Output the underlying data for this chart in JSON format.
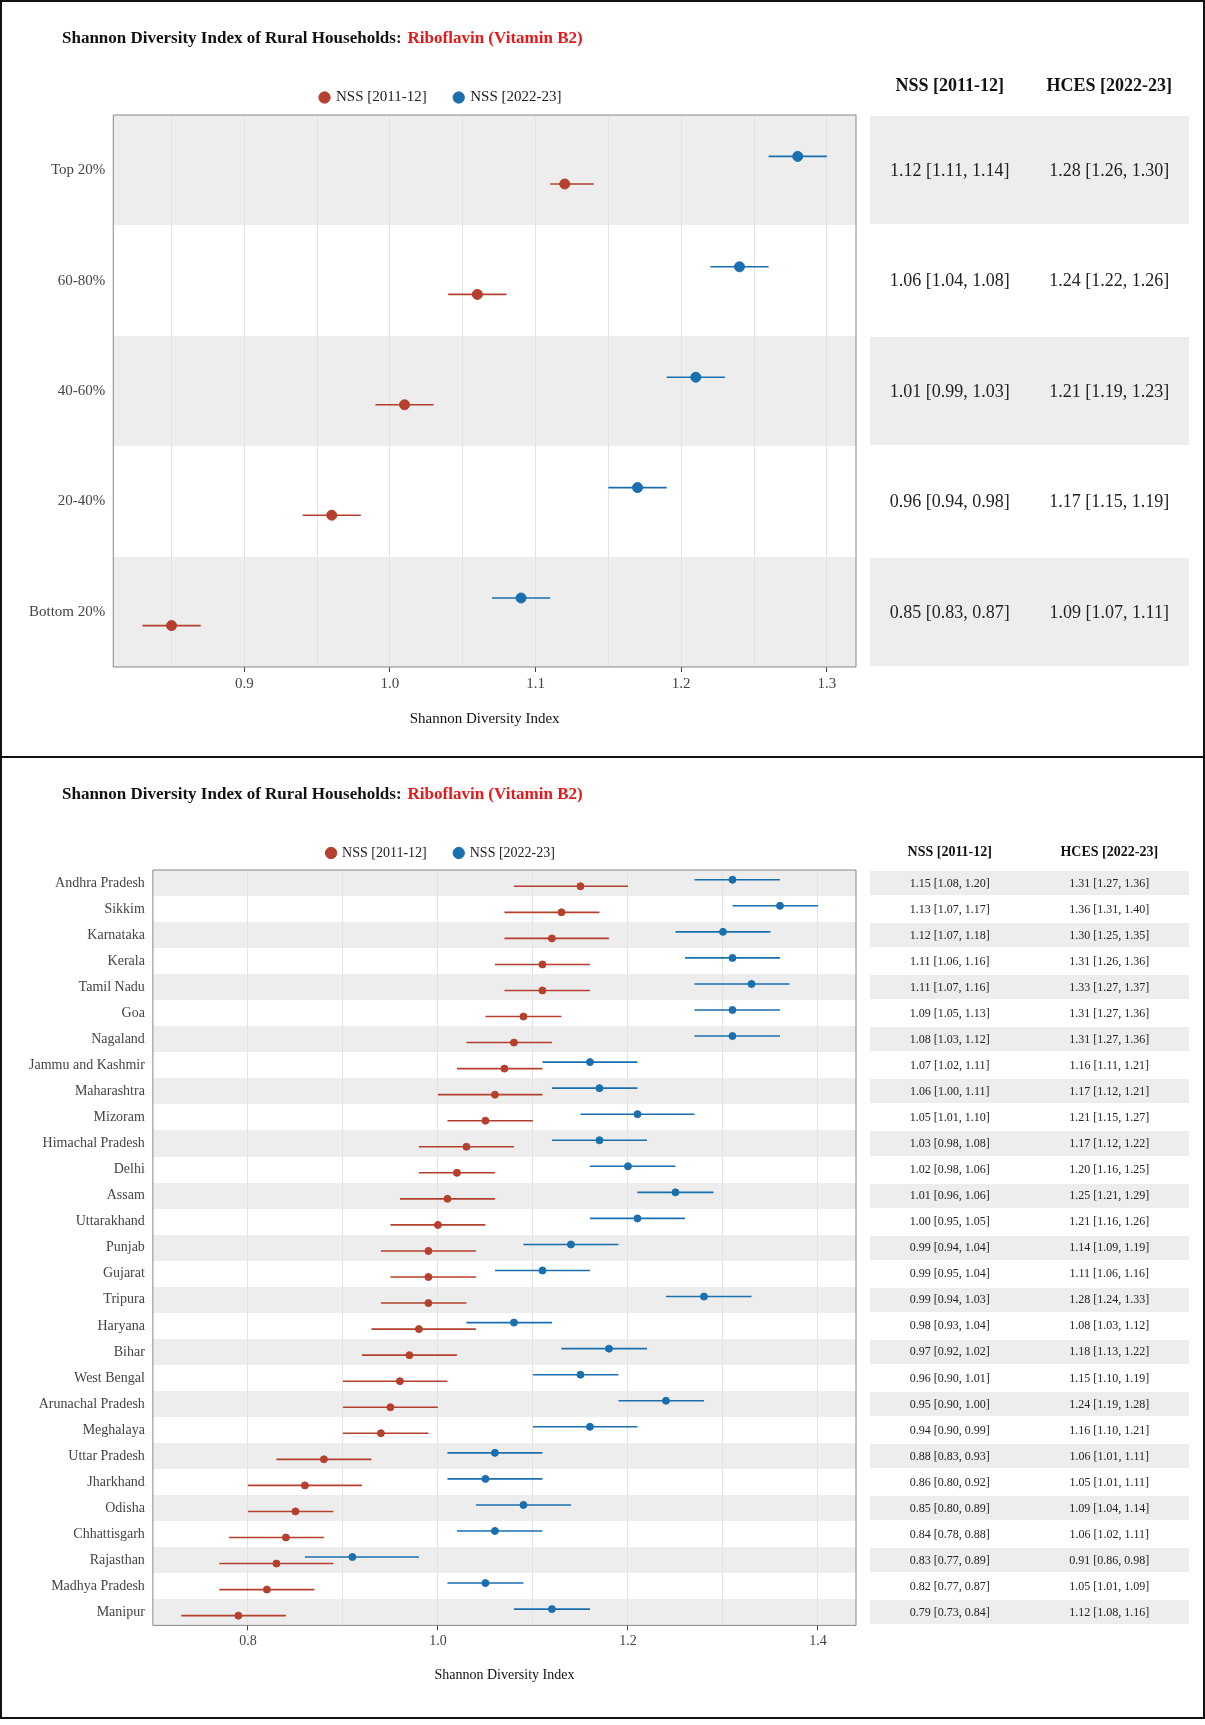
{
  "chart_data": [
    {
      "type": "scatter",
      "orientation": "horizontal",
      "title": "Shannon Diversity Index of Rural Households:",
      "subtitle": "Riboflavin (Vitamin B2)",
      "xlabel": "Shannon Diversity Index",
      "annotations": [
        "NSS [2011-12]",
        "HCES [2022-23]"
      ],
      "legend": "top",
      "grid": "x",
      "marker": "circle",
      "categories": [
        "Top 20%",
        "60-80%",
        "40-60%",
        "20-40%",
        "Bottom 20%"
      ],
      "xlim": [
        0.81,
        1.32
      ],
      "xticks": [
        {
          "value": 0.85,
          "label": null
        },
        0.9,
        {
          "value": 0.95,
          "label": null
        },
        {
          "value": 1,
          "label": "1.0"
        },
        {
          "value": 1.05,
          "label": null
        },
        1.1,
        {
          "value": 1.15,
          "label": null
        },
        1.2,
        {
          "value": 1.25,
          "label": null
        },
        1.3
      ],
      "series": [
        {
          "name": "NSS [2011-12]",
          "color": "#b5402e",
          "values": [
            1.12,
            1.06,
            1.01,
            0.96,
            0.85
          ],
          "errors": [
            [
              1.11,
              1.14
            ],
            [
              1.04,
              1.08
            ],
            [
              0.99,
              1.03
            ],
            [
              0.94,
              0.98
            ],
            [
              0.83,
              0.87
            ]
          ],
          "value_labels": [
            "1.12 [1.11, 1.14]",
            "1.06 [1.04, 1.08]",
            "1.01 [0.99, 1.03]",
            "0.96 [0.94, 0.98]",
            "0.85 [0.83, 0.87]"
          ]
        },
        {
          "name": "NSS [2022-23]",
          "color": "#1a6faf",
          "values": [
            1.28,
            1.24,
            1.21,
            1.17,
            1.09
          ],
          "errors": [
            [
              1.26,
              1.3
            ],
            [
              1.22,
              1.26
            ],
            [
              1.19,
              1.23
            ],
            [
              1.15,
              1.19
            ],
            [
              1.07,
              1.11
            ]
          ],
          "value_labels": [
            "1.28 [1.26, 1.30]",
            "1.24 [1.22, 1.26]",
            "1.21 [1.19, 1.23]",
            "1.17 [1.15, 1.19]",
            "1.09 [1.07, 1.11]"
          ]
        }
      ]
    },
    {
      "type": "scatter",
      "orientation": "horizontal",
      "title": "Shannon Diversity Index of Rural Households:",
      "subtitle": "Riboflavin (Vitamin B2)",
      "xlabel": "Shannon Diversity Index",
      "annotations": [
        "NSS [2011-12]",
        "HCES [2022-23]"
      ],
      "legend": "top",
      "grid": "x",
      "marker": "circle",
      "categories": [
        "Andhra Pradesh",
        "Sikkim",
        "Karnataka",
        "Kerala",
        "Tamil Nadu",
        "Goa",
        "Nagaland",
        "Jammu and Kashmir",
        "Maharashtra",
        "Mizoram",
        "Himachal Pradesh",
        "Delhi",
        "Assam",
        "Uttarakhand",
        "Punjab",
        "Gujarat",
        "Tripura",
        "Haryana",
        "Bihar",
        "West Bengal",
        "Arunachal Pradesh",
        "Meghalaya",
        "Uttar Pradesh",
        "Jharkhand",
        "Odisha",
        "Chhattisgarh",
        "Rajasthan",
        "Madhya Pradesh",
        "Manipur"
      ],
      "xlim": [
        0.7,
        1.44
      ],
      "xticks": [
        0.8,
        {
          "value": 0.9,
          "label": null
        },
        {
          "value": 1,
          "label": "1.0"
        },
        {
          "value": 1.1,
          "label": null
        },
        1.2,
        {
          "value": 1.3,
          "label": null
        },
        1.4
      ],
      "series": [
        {
          "name": "NSS [2011-12]",
          "color": "#b5402e",
          "values": [
            1.15,
            1.13,
            1.12,
            1.11,
            1.11,
            1.09,
            1.08,
            1.07,
            1.06,
            1.05,
            1.03,
            1.02,
            1.01,
            1.0,
            0.99,
            0.99,
            0.99,
            0.98,
            0.97,
            0.96,
            0.95,
            0.94,
            0.88,
            0.86,
            0.85,
            0.84,
            0.83,
            0.82,
            0.79
          ],
          "errors": [
            [
              1.08,
              1.2
            ],
            [
              1.07,
              1.17
            ],
            [
              1.07,
              1.18
            ],
            [
              1.06,
              1.16
            ],
            [
              1.07,
              1.16
            ],
            [
              1.05,
              1.13
            ],
            [
              1.03,
              1.12
            ],
            [
              1.02,
              1.11
            ],
            [
              1.0,
              1.11
            ],
            [
              1.01,
              1.1
            ],
            [
              0.98,
              1.08
            ],
            [
              0.98,
              1.06
            ],
            [
              0.96,
              1.06
            ],
            [
              0.95,
              1.05
            ],
            [
              0.94,
              1.04
            ],
            [
              0.95,
              1.04
            ],
            [
              0.94,
              1.03
            ],
            [
              0.93,
              1.04
            ],
            [
              0.92,
              1.02
            ],
            [
              0.9,
              1.01
            ],
            [
              0.9,
              1.0
            ],
            [
              0.9,
              0.99
            ],
            [
              0.83,
              0.93
            ],
            [
              0.8,
              0.92
            ],
            [
              0.8,
              0.89
            ],
            [
              0.78,
              0.88
            ],
            [
              0.77,
              0.89
            ],
            [
              0.77,
              0.87
            ],
            [
              0.73,
              0.84
            ]
          ],
          "value_labels": [
            "1.15 [1.08, 1.20]",
            "1.13 [1.07, 1.17]",
            "1.12 [1.07, 1.18]",
            "1.11 [1.06, 1.16]",
            "1.11 [1.07, 1.16]",
            "1.09 [1.05, 1.13]",
            "1.08 [1.03, 1.12]",
            "1.07 [1.02, 1.11]",
            "1.06 [1.00, 1.11]",
            "1.05 [1.01, 1.10]",
            "1.03 [0.98, 1.08]",
            "1.02 [0.98, 1.06]",
            "1.01 [0.96, 1.06]",
            "1.00 [0.95, 1.05]",
            "0.99 [0.94, 1.04]",
            "0.99 [0.95, 1.04]",
            "0.99 [0.94, 1.03]",
            "0.98 [0.93, 1.04]",
            "0.97 [0.92, 1.02]",
            "0.96 [0.90, 1.01]",
            "0.95 [0.90, 1.00]",
            "0.94 [0.90, 0.99]",
            "0.88 [0.83, 0.93]",
            "0.86 [0.80, 0.92]",
            "0.85 [0.80, 0.89]",
            "0.84 [0.78, 0.88]",
            "0.83 [0.77, 0.89]",
            "0.82 [0.77, 0.87]",
            "0.79 [0.73, 0.84]"
          ]
        },
        {
          "name": "NSS [2022-23]",
          "color": "#1a6faf",
          "values": [
            1.31,
            1.36,
            1.3,
            1.31,
            1.33,
            1.31,
            1.31,
            1.16,
            1.17,
            1.21,
            1.17,
            1.2,
            1.25,
            1.21,
            1.14,
            1.11,
            1.28,
            1.08,
            1.18,
            1.15,
            1.24,
            1.16,
            1.06,
            1.05,
            1.09,
            1.06,
            0.91,
            1.05,
            1.12
          ],
          "errors": [
            [
              1.27,
              1.36
            ],
            [
              1.31,
              1.4
            ],
            [
              1.25,
              1.35
            ],
            [
              1.26,
              1.36
            ],
            [
              1.27,
              1.37
            ],
            [
              1.27,
              1.36
            ],
            [
              1.27,
              1.36
            ],
            [
              1.11,
              1.21
            ],
            [
              1.12,
              1.21
            ],
            [
              1.15,
              1.27
            ],
            [
              1.12,
              1.22
            ],
            [
              1.16,
              1.25
            ],
            [
              1.21,
              1.29
            ],
            [
              1.16,
              1.26
            ],
            [
              1.09,
              1.19
            ],
            [
              1.06,
              1.16
            ],
            [
              1.24,
              1.33
            ],
            [
              1.03,
              1.12
            ],
            [
              1.13,
              1.22
            ],
            [
              1.1,
              1.19
            ],
            [
              1.19,
              1.28
            ],
            [
              1.1,
              1.21
            ],
            [
              1.01,
              1.11
            ],
            [
              1.01,
              1.11
            ],
            [
              1.04,
              1.14
            ],
            [
              1.02,
              1.11
            ],
            [
              0.86,
              0.98
            ],
            [
              1.01,
              1.09
            ],
            [
              1.08,
              1.16
            ]
          ],
          "value_labels": [
            "1.31 [1.27, 1.36]",
            "1.36 [1.31, 1.40]",
            "1.30 [1.25, 1.35]",
            "1.31 [1.26, 1.36]",
            "1.33 [1.27, 1.37]",
            "1.31 [1.27, 1.36]",
            "1.31 [1.27, 1.36]",
            "1.16 [1.11, 1.21]",
            "1.17 [1.12, 1.21]",
            "1.21 [1.15, 1.27]",
            "1.17 [1.12, 1.22]",
            "1.20 [1.16, 1.25]",
            "1.25 [1.21, 1.29]",
            "1.21 [1.16, 1.26]",
            "1.14 [1.09, 1.19]",
            "1.11 [1.06, 1.16]",
            "1.28 [1.24, 1.33]",
            "1.08 [1.03, 1.12]",
            "1.18 [1.13, 1.22]",
            "1.15 [1.10, 1.19]",
            "1.24 [1.19, 1.28]",
            "1.16 [1.10, 1.21]",
            "1.06 [1.01, 1.11]",
            "1.05 [1.01, 1.11]",
            "1.09 [1.04, 1.14]",
            "1.06 [1.02, 1.11]",
            "0.91 [0.86, 0.98]",
            "1.05 [1.01, 1.09]",
            "1.12 [1.08, 1.16]"
          ]
        }
      ]
    }
  ]
}
